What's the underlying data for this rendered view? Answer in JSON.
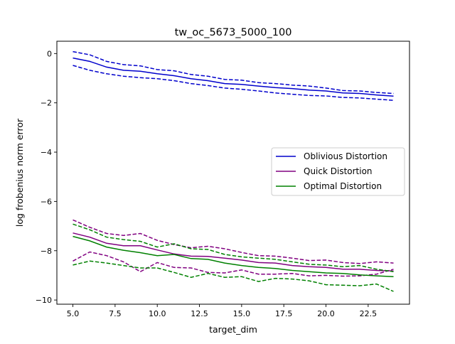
{
  "chart_data": {
    "type": "line",
    "title": "tw_oc_5673_5000_100",
    "xlabel": "target_dim",
    "ylabel": "log frobenius norm error",
    "xlim": [
      4.05,
      24.95
    ],
    "ylim": [
      -10.17,
      0.5
    ],
    "xticks": [
      5.0,
      7.5,
      10.0,
      12.5,
      15.0,
      17.5,
      20.0,
      22.5
    ],
    "xtick_labels": [
      "5.0",
      "7.5",
      "10.0",
      "12.5",
      "15.0",
      "17.5",
      "20.0",
      "22.5"
    ],
    "yticks": [
      0,
      -2,
      -4,
      -6,
      -8,
      -10
    ],
    "ytick_labels": [
      "0",
      "−2",
      "−4",
      "−6",
      "−8",
      "−10"
    ],
    "grid": false,
    "legend_position": "center-right",
    "x": [
      5,
      6,
      7,
      8,
      9,
      10,
      11,
      12,
      13,
      14,
      15,
      16,
      17,
      18,
      19,
      20,
      21,
      22,
      23,
      24
    ],
    "series": [
      {
        "name": "Oblivious Distortion",
        "color": "#0000cc",
        "mean": [
          -0.18,
          -0.32,
          -0.55,
          -0.68,
          -0.72,
          -0.82,
          -0.9,
          -1.02,
          -1.1,
          -1.22,
          -1.25,
          -1.32,
          -1.38,
          -1.42,
          -1.48,
          -1.52,
          -1.6,
          -1.62,
          -1.68,
          -1.73
        ],
        "upper": [
          0.08,
          -0.05,
          -0.32,
          -0.45,
          -0.5,
          -0.65,
          -0.7,
          -0.85,
          -0.92,
          -1.05,
          -1.08,
          -1.18,
          -1.22,
          -1.28,
          -1.32,
          -1.4,
          -1.5,
          -1.52,
          -1.58,
          -1.62
        ],
        "lower": [
          -0.48,
          -0.68,
          -0.82,
          -0.92,
          -0.98,
          -1.02,
          -1.1,
          -1.22,
          -1.3,
          -1.4,
          -1.45,
          -1.52,
          -1.6,
          -1.65,
          -1.7,
          -1.72,
          -1.78,
          -1.8,
          -1.85,
          -1.9
        ]
      },
      {
        "name": "Quick Distortion",
        "color": "#800080",
        "mean": [
          -7.28,
          -7.45,
          -7.7,
          -7.8,
          -7.8,
          -7.97,
          -8.13,
          -8.22,
          -8.23,
          -8.3,
          -8.38,
          -8.48,
          -8.5,
          -8.6,
          -8.65,
          -8.68,
          -8.75,
          -8.75,
          -8.8,
          -8.82
        ],
        "upper": [
          -6.75,
          -7.05,
          -7.3,
          -7.38,
          -7.3,
          -7.58,
          -7.75,
          -7.88,
          -7.82,
          -7.92,
          -8.07,
          -8.2,
          -8.22,
          -8.3,
          -8.4,
          -8.38,
          -8.48,
          -8.52,
          -8.45,
          -8.5
        ],
        "lower": [
          -8.42,
          -8.05,
          -8.2,
          -8.45,
          -8.85,
          -8.48,
          -8.68,
          -8.7,
          -8.88,
          -8.9,
          -8.78,
          -8.95,
          -8.95,
          -8.92,
          -9.02,
          -9.0,
          -9.03,
          -9.02,
          -8.95,
          -8.75
        ]
      },
      {
        "name": "Optimal Distortion",
        "color": "#008000",
        "mean": [
          -7.42,
          -7.6,
          -7.85,
          -7.98,
          -8.08,
          -8.2,
          -8.15,
          -8.32,
          -8.35,
          -8.5,
          -8.6,
          -8.68,
          -8.72,
          -8.8,
          -8.85,
          -8.9,
          -8.92,
          -8.98,
          -9.02,
          -9.05
        ],
        "upper": [
          -6.92,
          -7.15,
          -7.45,
          -7.55,
          -7.62,
          -7.85,
          -7.72,
          -7.92,
          -7.95,
          -8.15,
          -8.25,
          -8.3,
          -8.35,
          -8.45,
          -8.55,
          -8.58,
          -8.65,
          -8.6,
          -8.75,
          -8.85
        ],
        "lower": [
          -8.58,
          -8.42,
          -8.5,
          -8.6,
          -8.7,
          -8.7,
          -8.88,
          -9.08,
          -8.92,
          -9.08,
          -9.05,
          -9.25,
          -9.12,
          -9.15,
          -9.22,
          -9.38,
          -9.4,
          -9.42,
          -9.35,
          -9.65
        ]
      }
    ]
  }
}
